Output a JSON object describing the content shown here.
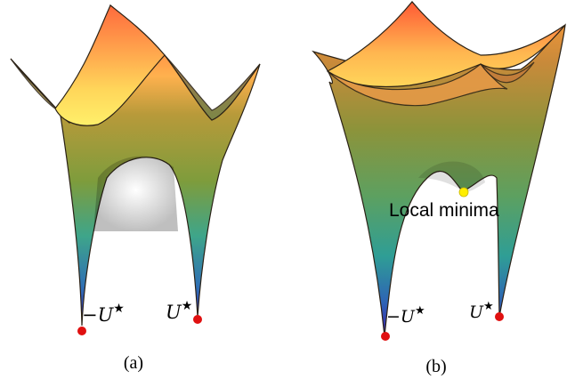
{
  "panels": [
    {
      "caption": "(a)",
      "labels": {
        "neg_point": "−U",
        "pos_point": "U",
        "star": "★"
      }
    },
    {
      "caption": "(b)",
      "labels": {
        "neg_point": "−U",
        "pos_point": "U",
        "star": "★",
        "annotation": "Local minima"
      }
    }
  ],
  "colors": {
    "surface_top": "#ff6a3d",
    "surface_mid_warm": "#ffd65a",
    "surface_mid": "#8aa03a",
    "surface_low": "#2f9e8a",
    "surface_bottom": "#3a2fb0",
    "point_red": "#e01010",
    "point_yellow": "#ffee00",
    "edge": "#3a2a1a"
  }
}
